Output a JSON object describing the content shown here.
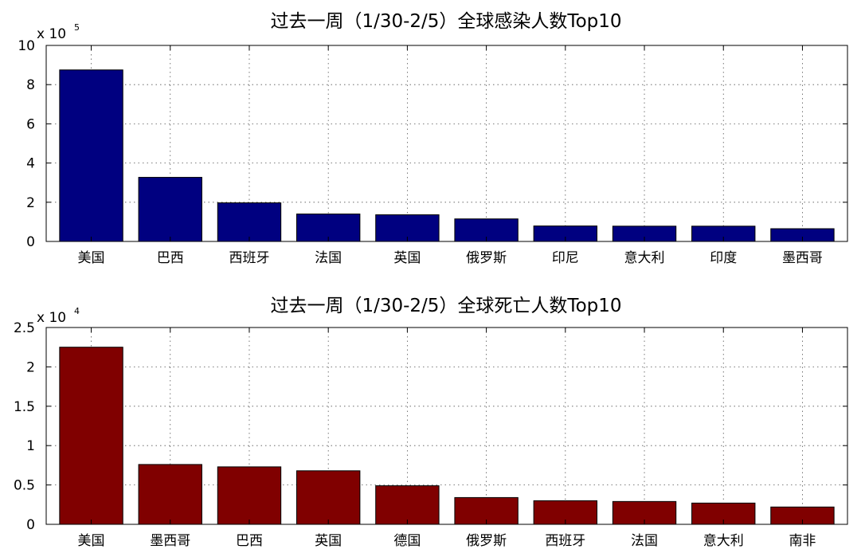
{
  "chart_data": [
    {
      "type": "bar",
      "title": "过去一周（1/30-2/5）全球感染人数Top10",
      "categories": [
        "美国",
        "巴西",
        "西班牙",
        "法国",
        "英国",
        "俄罗斯",
        "印尼",
        "意大利",
        "印度",
        "墨西哥"
      ],
      "values": [
        875000,
        327000,
        197000,
        140000,
        136000,
        115000,
        79000,
        78000,
        78000,
        65000
      ],
      "multiplier_base": "x 10",
      "multiplier_exp": "5",
      "yticks": [
        0,
        2,
        4,
        6,
        8,
        10
      ],
      "ylim": [
        0,
        1000000
      ],
      "grid": true,
      "bar_color": "#000080"
    },
    {
      "type": "bar",
      "title": "过去一周（1/30-2/5）全球死亡人数Top10",
      "categories": [
        "美国",
        "墨西哥",
        "巴西",
        "英国",
        "德国",
        "俄罗斯",
        "西班牙",
        "法国",
        "意大利",
        "南非"
      ],
      "values": [
        22500,
        7600,
        7300,
        6800,
        4900,
        3400,
        3000,
        2900,
        2700,
        2200
      ],
      "multiplier_base": "x 10",
      "multiplier_exp": "4",
      "yticks": [
        0,
        0.5,
        1,
        1.5,
        2,
        2.5
      ],
      "ylim": [
        0,
        25000
      ],
      "grid": true,
      "bar_color": "#800000"
    }
  ]
}
